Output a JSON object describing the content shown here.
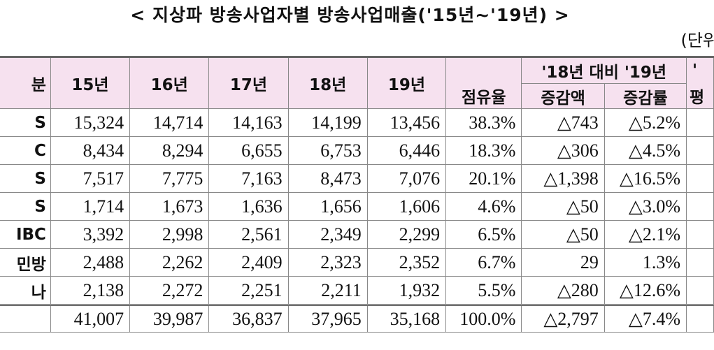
{
  "title": "< 지상파 방송사업자별 방송사업매출('15년~'19년) >",
  "unit": "(단위",
  "header": {
    "col0": "분",
    "years": [
      "15년",
      "16년",
      "17년",
      "18년",
      "19년"
    ],
    "share": "점유율",
    "compare_group": "'18년 대비 '19년",
    "change_amount": "증감액",
    "change_rate": "증감률",
    "extra_top": "'",
    "extra_bottom": "평"
  },
  "rows": [
    {
      "name": "S",
      "values": [
        "15,324",
        "14,714",
        "14,163",
        "14,199",
        "13,456"
      ],
      "share": "38.3%",
      "amount": "△743",
      "rate": "△5.2%"
    },
    {
      "name": "C",
      "values": [
        "8,434",
        "8,294",
        "6,655",
        "6,753",
        "6,446"
      ],
      "share": "18.3%",
      "amount": "△306",
      "rate": "△4.5%"
    },
    {
      "name": "S",
      "values": [
        "7,517",
        "7,775",
        "7,163",
        "8,473",
        "7,076"
      ],
      "share": "20.1%",
      "amount": "△1,398",
      "rate": "△16.5%"
    },
    {
      "name": "S",
      "values": [
        "1,714",
        "1,673",
        "1,636",
        "1,656",
        "1,606"
      ],
      "share": "4.6%",
      "amount": "△50",
      "rate": "△3.0%"
    },
    {
      "name": "IBC",
      "values": [
        "3,392",
        "2,998",
        "2,561",
        "2,349",
        "2,299"
      ],
      "share": "6.5%",
      "amount": "△50",
      "rate": "△2.1%"
    },
    {
      "name": "민방",
      "values": [
        "2,488",
        "2,262",
        "2,409",
        "2,323",
        "2,352"
      ],
      "share": "6.7%",
      "amount": "29",
      "rate": "1.3%"
    },
    {
      "name": "나",
      "values": [
        "2,138",
        "2,272",
        "2,251",
        "2,211",
        "1,932"
      ],
      "share": "5.5%",
      "amount": "△280",
      "rate": "△12.6%"
    }
  ],
  "total": {
    "name": "",
    "values": [
      "41,007",
      "39,987",
      "36,837",
      "37,965",
      "35,168"
    ],
    "share": "100.0%",
    "amount": "△2,797",
    "rate": "△7.4%"
  }
}
